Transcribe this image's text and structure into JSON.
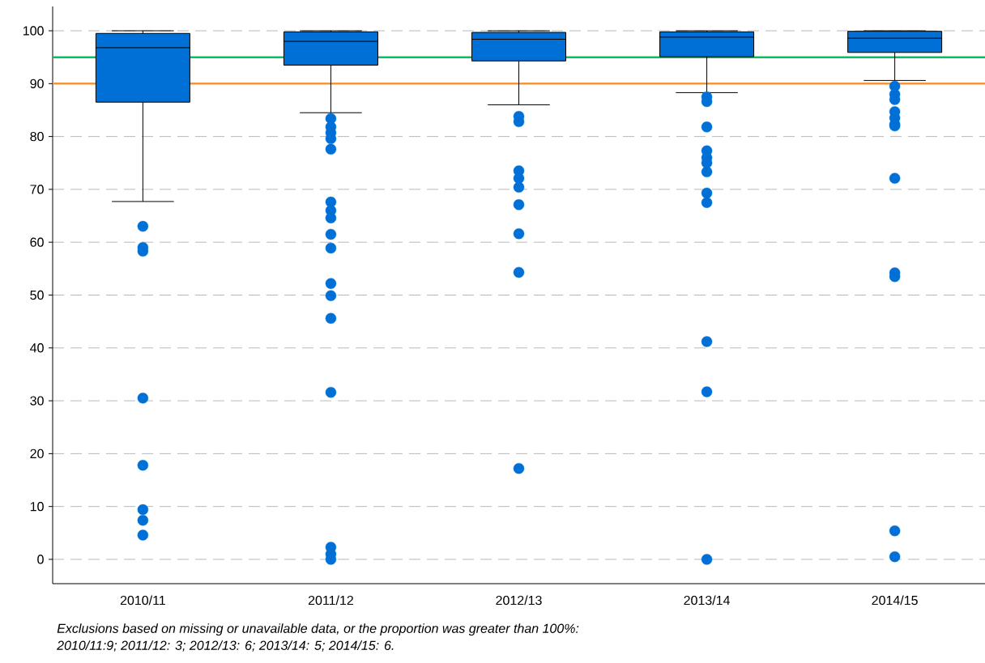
{
  "chart_data": {
    "type": "box",
    "categories": [
      "2010/11",
      "2011/12",
      "2012/13",
      "2013/14",
      "2014/15"
    ],
    "color": "#006fd6",
    "boxes": [
      {
        "low": 67.7,
        "q1": 86.5,
        "median": 96.8,
        "q3": 99.5,
        "high": 100,
        "outliers": [
          63.0,
          59.0,
          58.3,
          30.5,
          17.8,
          9.4,
          7.4,
          4.6
        ]
      },
      {
        "low": 84.5,
        "q1": 93.5,
        "median": 98.0,
        "q3": 99.8,
        "high": 100,
        "outliers": [
          83.4,
          81.8,
          80.7,
          79.6,
          77.6,
          67.6,
          66.0,
          64.6,
          61.5,
          58.9,
          52.2,
          49.9,
          45.6,
          31.6,
          2.3,
          1.0,
          0.0
        ]
      },
      {
        "low": 86.0,
        "q1": 94.3,
        "median": 98.4,
        "q3": 99.7,
        "high": 100,
        "outliers": [
          83.8,
          82.8,
          73.5,
          72.1,
          70.4,
          67.1,
          61.6,
          54.3,
          17.2
        ]
      },
      {
        "low": 88.3,
        "q1": 95.1,
        "median": 98.8,
        "q3": 99.8,
        "high": 100,
        "outliers": [
          87.5,
          86.6,
          81.8,
          77.3,
          76.0,
          75.0,
          73.3,
          69.3,
          67.5,
          41.2,
          31.7,
          0.0
        ]
      },
      {
        "low": 90.6,
        "q1": 95.9,
        "median": 98.6,
        "q3": 99.9,
        "high": 100,
        "outliers": [
          89.5,
          88.0,
          87.0,
          84.7,
          83.5,
          82.3,
          82.0,
          72.1,
          54.2,
          53.5,
          5.4,
          0.5
        ]
      }
    ],
    "marker": "circle",
    "ylim": [
      -4.6,
      104.6
    ],
    "yticks": [
      0,
      10,
      20,
      30,
      40,
      50,
      60,
      70,
      80,
      90,
      100
    ],
    "grid": "y",
    "ref_lines": [
      {
        "axis": "y",
        "value": 95,
        "color": "#00c462"
      },
      {
        "axis": "y",
        "value": 90,
        "color": "#ef9640"
      }
    ],
    "annotations": [
      "Exclusions based on missing or unavailable data, or the proportion was greater than 100%:",
      "2010/11:9; 2011/12: 3; 2012/13: 6; 2013/14: 5; 2014/15: 6."
    ]
  }
}
